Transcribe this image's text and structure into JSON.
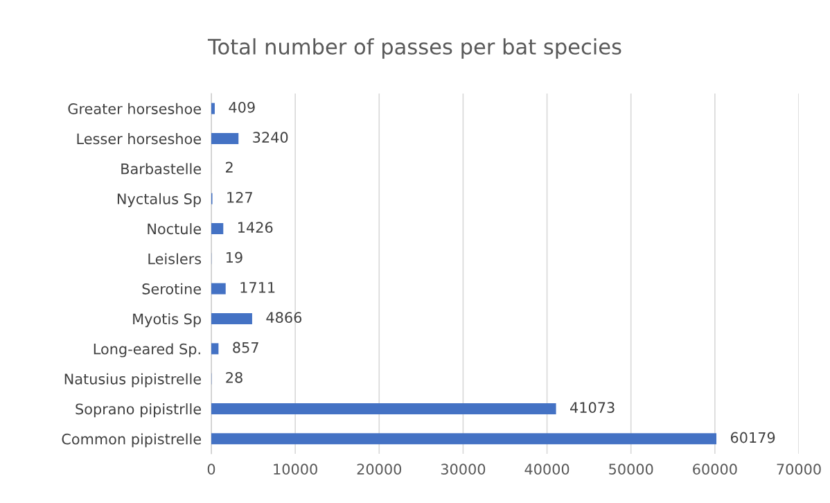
{
  "chart_data": {
    "type": "bar",
    "orientation": "horizontal",
    "title": "Total number of passes per bat species",
    "categories": [
      "Greater horseshoe",
      "Lesser horseshoe",
      "Barbastelle",
      "Nyctalus Sp",
      "Noctule",
      "Leislers",
      "Serotine",
      "Myotis Sp",
      "Long-eared Sp.",
      "Natusius pipistrelle",
      "Soprano pipistrlle",
      "Common pipistrelle"
    ],
    "values": [
      409,
      3240,
      2,
      127,
      1426,
      19,
      1711,
      4866,
      857,
      28,
      41073,
      60179
    ],
    "color": "#4472c4",
    "xlim": [
      0,
      70000
    ],
    "xticks": [
      0,
      10000,
      20000,
      30000,
      40000,
      50000,
      60000,
      70000
    ],
    "grid": "x",
    "data_labels": true
  }
}
